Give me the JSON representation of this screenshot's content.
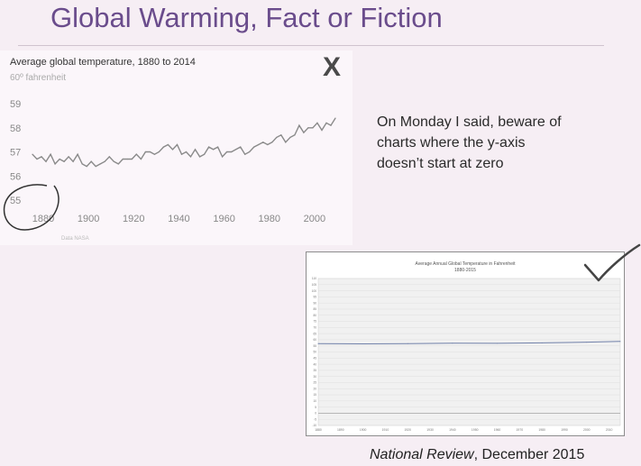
{
  "slide": {
    "title": "Global Warming, Fact or Fiction",
    "body_text": "On Monday I said, beware of\ncharts where the y-axis\ndoesn’t start at zero",
    "mark_x": "X",
    "source_publication": "National Review",
    "source_date": ", December 2015"
  },
  "colors": {
    "title": "#6a4c8c",
    "line1": "#8a8a8a",
    "line2": "#6f7fa8",
    "annotation_ink": "#333333"
  },
  "chart_data": [
    {
      "type": "line",
      "title": "Average global temperature, 1880 to 2014",
      "subtitle": "60º fahrenheit",
      "source_note": "Data NASA",
      "xlim": [
        1880,
        2014
      ],
      "ylim": [
        55,
        59
      ],
      "x_ticks": [
        "1880",
        "1900",
        "1920",
        "1940",
        "1960",
        "1980",
        "2000"
      ],
      "y_ticks": [
        "55",
        "56",
        "57",
        "58",
        "59"
      ],
      "grid": false,
      "series": [
        {
          "x": [
            1880,
            1882,
            1884,
            1886,
            1888,
            1890,
            1892,
            1894,
            1896,
            1898,
            1900,
            1902,
            1904,
            1906,
            1908,
            1910,
            1912,
            1914,
            1916,
            1918,
            1920,
            1922,
            1924,
            1926,
            1928,
            1930,
            1932,
            1934,
            1936,
            1938,
            1940,
            1942,
            1944,
            1946,
            1948,
            1950,
            1952,
            1954,
            1956,
            1958,
            1960,
            1962,
            1964,
            1966,
            1968,
            1970,
            1972,
            1974,
            1976,
            1978,
            1980,
            1982,
            1984,
            1986,
            1988,
            1990,
            1992,
            1994,
            1996,
            1998,
            2000,
            2002,
            2004,
            2006,
            2008,
            2010,
            2012,
            2014
          ],
          "values": [
            56.9,
            56.7,
            56.8,
            56.6,
            56.9,
            56.5,
            56.7,
            56.6,
            56.8,
            56.6,
            56.9,
            56.5,
            56.4,
            56.6,
            56.4,
            56.5,
            56.6,
            56.8,
            56.6,
            56.5,
            56.7,
            56.7,
            56.7,
            56.9,
            56.7,
            57.0,
            57.0,
            56.9,
            57.0,
            57.2,
            57.3,
            57.1,
            57.3,
            56.9,
            57.0,
            56.8,
            57.1,
            56.8,
            56.9,
            57.2,
            57.1,
            57.2,
            56.8,
            57.0,
            57.0,
            57.1,
            57.2,
            56.9,
            57.0,
            57.2,
            57.3,
            57.4,
            57.3,
            57.4,
            57.6,
            57.7,
            57.4,
            57.6,
            57.7,
            58.1,
            57.8,
            58.0,
            58.0,
            58.2,
            57.9,
            58.2,
            58.1,
            58.4
          ]
        }
      ]
    },
    {
      "type": "line",
      "title": "Average Annual Global Temperature in Fahrenheit",
      "subtitle": "1880-2015",
      "xlim": [
        1880,
        2015
      ],
      "ylim": [
        -10,
        110
      ],
      "x_ticks": [
        "1880",
        "1890",
        "1900",
        "1910",
        "1920",
        "1930",
        "1940",
        "1950",
        "1960",
        "1970",
        "1980",
        "1990",
        "2000",
        "2010"
      ],
      "y_ticks": [
        "-10",
        "-5",
        "0",
        "5",
        "10",
        "15",
        "20",
        "25",
        "30",
        "35",
        "40",
        "45",
        "50",
        "55",
        "60",
        "65",
        "70",
        "75",
        "80",
        "85",
        "90",
        "95",
        "100",
        "105",
        "110"
      ],
      "grid": true,
      "series": [
        {
          "x": [
            1880,
            1900,
            1920,
            1940,
            1960,
            1980,
            2000,
            2015
          ],
          "values": [
            56.8,
            56.6,
            56.8,
            57.2,
            57.1,
            57.4,
            58.0,
            58.6
          ]
        }
      ]
    }
  ]
}
